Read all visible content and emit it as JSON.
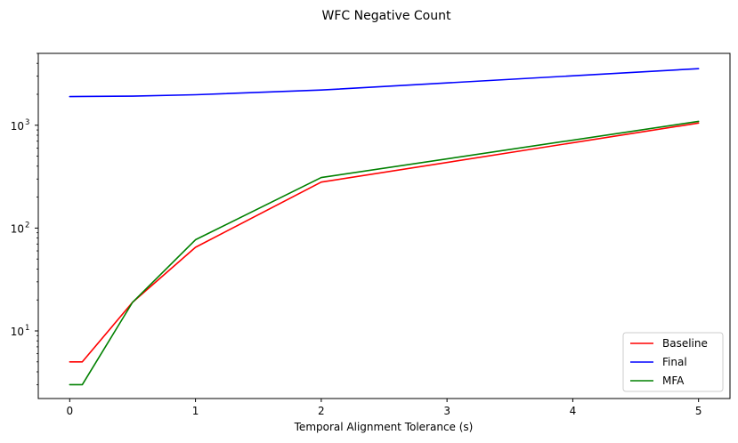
{
  "chart_data": {
    "type": "line",
    "title": "WFC Negative Count",
    "xlabel": "Temporal Alignment Tolerance (s)",
    "ylabel": "",
    "xlim": [
      -0.25,
      5.25
    ],
    "ylim": [
      2.2,
      5000
    ],
    "yscale": "log",
    "grid": false,
    "legend_position": "lower-right",
    "x_ticks": [
      {
        "value": 0,
        "label": "0"
      },
      {
        "value": 1,
        "label": "1"
      },
      {
        "value": 2,
        "label": "2"
      },
      {
        "value": 3,
        "label": "3"
      },
      {
        "value": 4,
        "label": "4"
      },
      {
        "value": 5,
        "label": "5"
      }
    ],
    "y_ticks": [
      {
        "value": 10,
        "base": "10",
        "exp": "1"
      },
      {
        "value": 100,
        "base": "10",
        "exp": "2"
      },
      {
        "value": 1000,
        "base": "10",
        "exp": "3"
      }
    ],
    "series": [
      {
        "name": "Baseline",
        "color": "#ff0000",
        "x": [
          0,
          0.1,
          0.5,
          1,
          2,
          5
        ],
        "y": [
          5,
          5,
          19,
          65,
          280,
          1050
        ]
      },
      {
        "name": "Final",
        "color": "#0000ff",
        "x": [
          0,
          0.1,
          0.5,
          1,
          2,
          5
        ],
        "y": [
          1900,
          1905,
          1920,
          1980,
          2200,
          3550
        ]
      },
      {
        "name": "MFA",
        "color": "#008000",
        "x": [
          0,
          0.1,
          0.5,
          1,
          2,
          5
        ],
        "y": [
          3,
          3,
          19,
          77,
          310,
          1090
        ]
      }
    ]
  }
}
